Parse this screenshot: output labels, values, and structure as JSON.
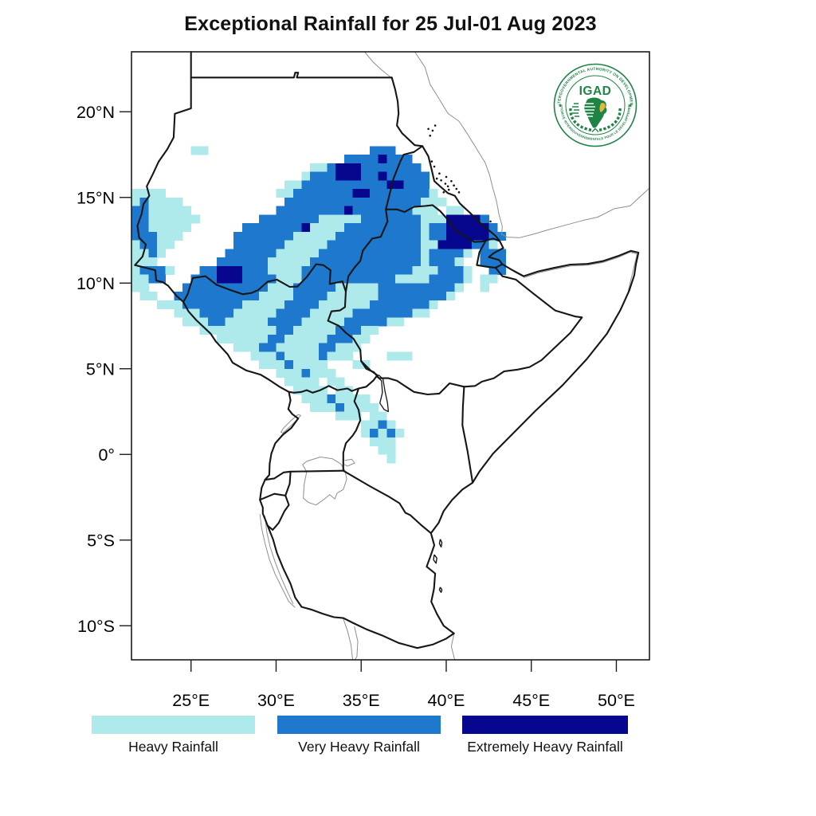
{
  "title": "Exceptional Rainfall for 25 Jul-01 Aug 2023",
  "map": {
    "y_axis": {
      "labels": [
        "20°N",
        "15°N",
        "10°N",
        "5°N",
        "0°",
        "5°S",
        "10°S"
      ],
      "tick_lats": [
        20,
        15,
        10,
        5,
        0,
        -5,
        -10
      ]
    },
    "x_axis": {
      "labels": [
        "25°E",
        "30°E",
        "35°E",
        "40°E",
        "45°E",
        "50°E"
      ],
      "tick_lons": [
        25,
        30,
        35,
        40,
        45,
        50
      ]
    },
    "bounds": {
      "lon_min": 21.5,
      "lon_max": 52.0,
      "lat_min": -12.0,
      "lat_max": 23.5
    }
  },
  "legend": {
    "items": [
      {
        "key": "h",
        "label": "Heavy Rainfall",
        "color": "#aee9ec"
      },
      {
        "key": "v",
        "label": "Very Heavy Rainfall",
        "color": "#1e78cd"
      },
      {
        "key": "e",
        "label": "Extremely Heavy Rainfall",
        "color": "#06068e"
      }
    ]
  },
  "logo": {
    "acronym": "IGAD",
    "arc_top": "INTERGOVERNMENTAL AUTHORITY ON DEVELOPMENT",
    "arc_bottom": "AUTORITE INTERGOUVERNEMENTALE POUR LE DEVELOPPEMENT",
    "green": "#1e8445",
    "gold": "#e8b73a"
  },
  "chart_data": {
    "type": "heatmap",
    "name": "exceptional-rainfall-raster",
    "cell_size_deg": 0.5,
    "origin": {
      "lon": 21.5,
      "lat_top": 18.0
    },
    "cols": 44,
    "rows": 38,
    "encoding": {
      ".": "none",
      "h": "Heavy Rainfall",
      "v": "Very Heavy Rainfall",
      "e": "Extremely Heavy Rainfall"
    },
    "grid": [
      ".......hh...................vvv.............",
      ".........................vvvvevvv...........",
      ".....................hhveeevvvvvvv..........",
      "....................hvvveeevvevvvvv.........",
      "..................hhvvvvvvvvvveevvv.........",
      "hhhh.............hhvvvvvvveevvvvvvvh........",
      "hvhhhh............vvvvvvvvvvvvvvvvhhh.......",
      "vvhhhhh..........vvvvvvvvevvvvvvvhhh.hh.....",
      "vvhhhhhh.......vvvvvvvhhhhhvvvvvvvhhheeeev..",
      "vvhhhhh......vvvvvvvehhhhvvvvvvvvvhvveeeeev.",
      "vvvhhh......vvvvvvvhhhhhvvvvvvvvvvhvveeeeevv",
      "hvvhh.......vvvvvvhhhhhvvvvvvvvvvvhheeeevvh.",
      "hhvh.......vvvvvvhhhhhvvvvvvvvvvvvhvvvvh.vvv",
      "hhh.......vvvvvvhhhhhvvvvvvvvvvvvvhvvvh..vvv",
      "hvvvh...vveeevvvhhhhvvvvvvvvvvvvvhhhvvvh..vv",
      "hhvv...vvveeevvvvhhhvvvvvvvvvvvhhhhvvvvh.hh.",
      "hh....vvvvvvvvvvhhhvvvvvhhhhhvvvvvvvvvh..h..",
      ".hh..vvvvvvvvvvhhhhvvvvhhhhhhvvvvvvvvh......",
      "...hhhvvvvvvvhhhhhvvvvhhhhhhvvvvvvvh........",
      ".....hhhvvvvhhhhhvvvvhhhhhvvvvvvvhh.........",
      "......hhhvvhhhhhvvvvhhhhhvvvvvhh............",
      "........hhhhhhhhhvvhhhhhvvvhh...............",
      "..........hhhhhhvvhhhhhvvvhh................",
      "............hhhvvhhhhhvvhhh.................",
      "..............hhhvhhhhvhhh....hhh...........",
      "...............hhhvhhhh...hh................",
      ".................hhhvhhh....................",
      "..................hhhh.hh...................",
      "...................hhhh.hh..................",
      "....................hhhvhhhh................",
      ".....................hhhvhhhh...............",
      "........................hhh.hh..............",
      "...........................hhvh.............",
      "...........................hvhvh............",
      "............................hhh.............",
      ".............................hh.............",
      "..............................h.............",
      "............................................"
    ]
  }
}
